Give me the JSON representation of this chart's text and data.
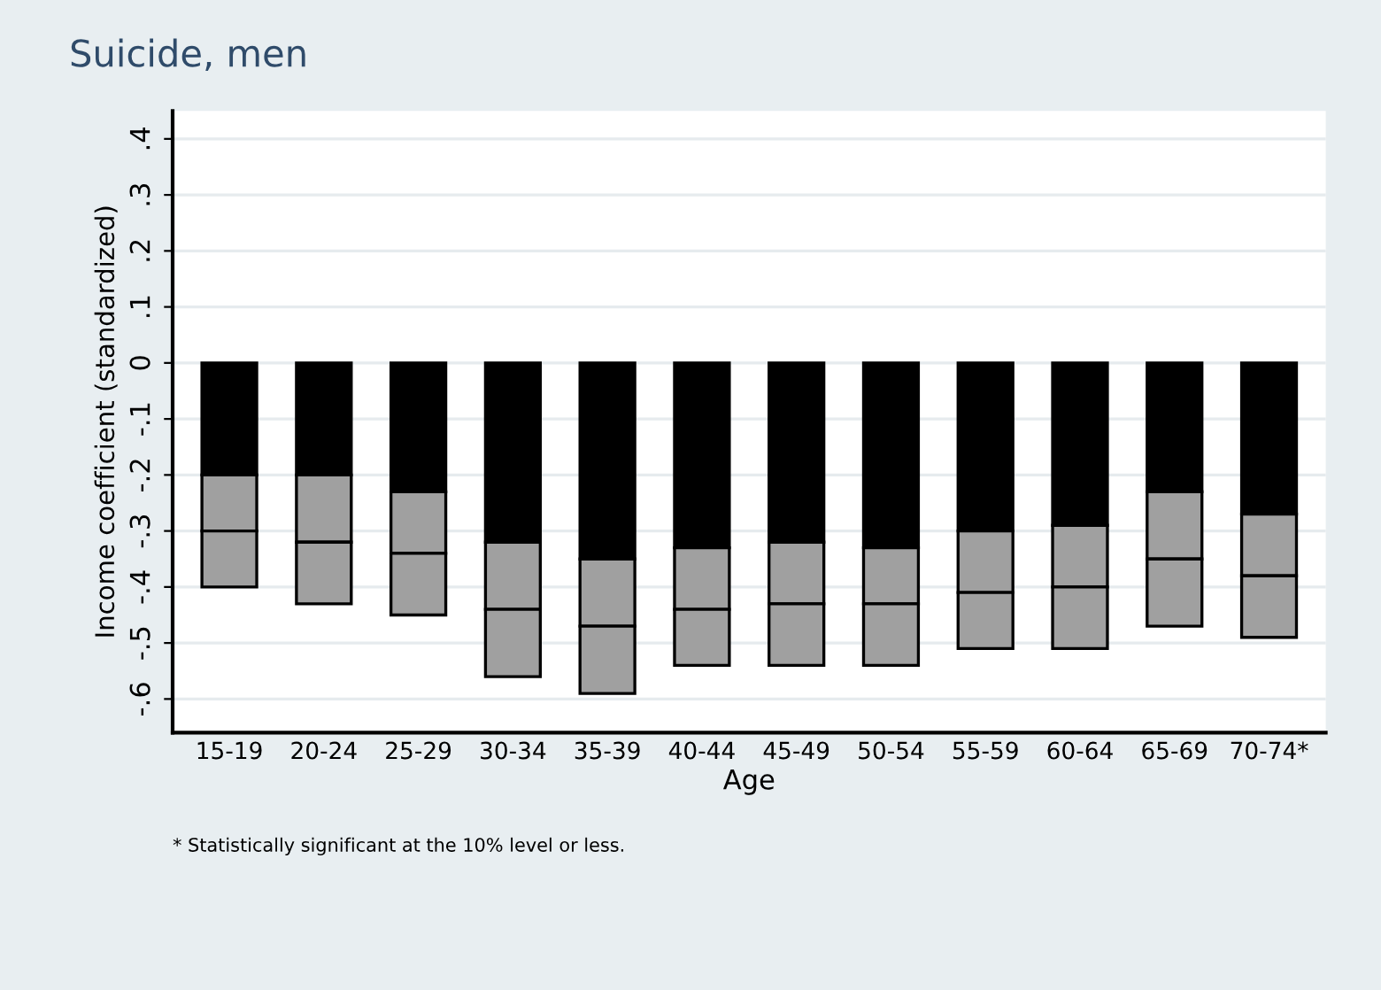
{
  "chart_data": {
    "type": "bar",
    "title": "Suicide, men",
    "xlabel": "Age",
    "ylabel": "Income coefficient (standardized)",
    "categories": [
      "15-19",
      "20-24",
      "25-29",
      "30-34",
      "35-39",
      "40-44",
      "45-49",
      "50-54",
      "55-59",
      "60-64",
      "65-69",
      "70-74*"
    ],
    "stacked": true,
    "series": [
      {
        "color": "#000000",
        "values": [
          -0.2,
          -0.2,
          -0.23,
          -0.32,
          -0.35,
          -0.33,
          -0.32,
          -0.33,
          -0.3,
          -0.29,
          -0.23,
          -0.27
        ]
      },
      {
        "color": "#a0a0a0",
        "values": [
          -0.1,
          -0.12,
          -0.11,
          -0.12,
          -0.12,
          -0.11,
          -0.11,
          -0.1,
          -0.11,
          -0.11,
          -0.12,
          -0.11
        ]
      },
      {
        "color": "#a0a0a0",
        "values": [
          -0.1,
          -0.11,
          -0.11,
          -0.12,
          -0.12,
          -0.1,
          -0.11,
          -0.11,
          -0.1,
          -0.11,
          -0.12,
          -0.11
        ]
      }
    ],
    "ylim": [
      -0.66,
      0.45
    ],
    "yticks": [
      {
        "value": -0.6,
        "label": "-.6"
      },
      {
        "value": -0.5,
        "label": "-.5"
      },
      {
        "value": -0.4,
        "label": "-.4"
      },
      {
        "value": -0.3,
        "label": "-.3"
      },
      {
        "value": -0.2,
        "label": "-.2"
      },
      {
        "value": -0.1,
        "label": "-.1"
      },
      0,
      {
        "value": 0.1,
        "label": ".1"
      },
      {
        "value": 0.2,
        "label": ".2"
      },
      {
        "value": 0.3,
        "label": ".3"
      },
      {
        "value": 0.4,
        "label": ".4"
      }
    ],
    "grid": "y",
    "annotations": [
      "* Statistically significant at the 10% level or less."
    ]
  }
}
